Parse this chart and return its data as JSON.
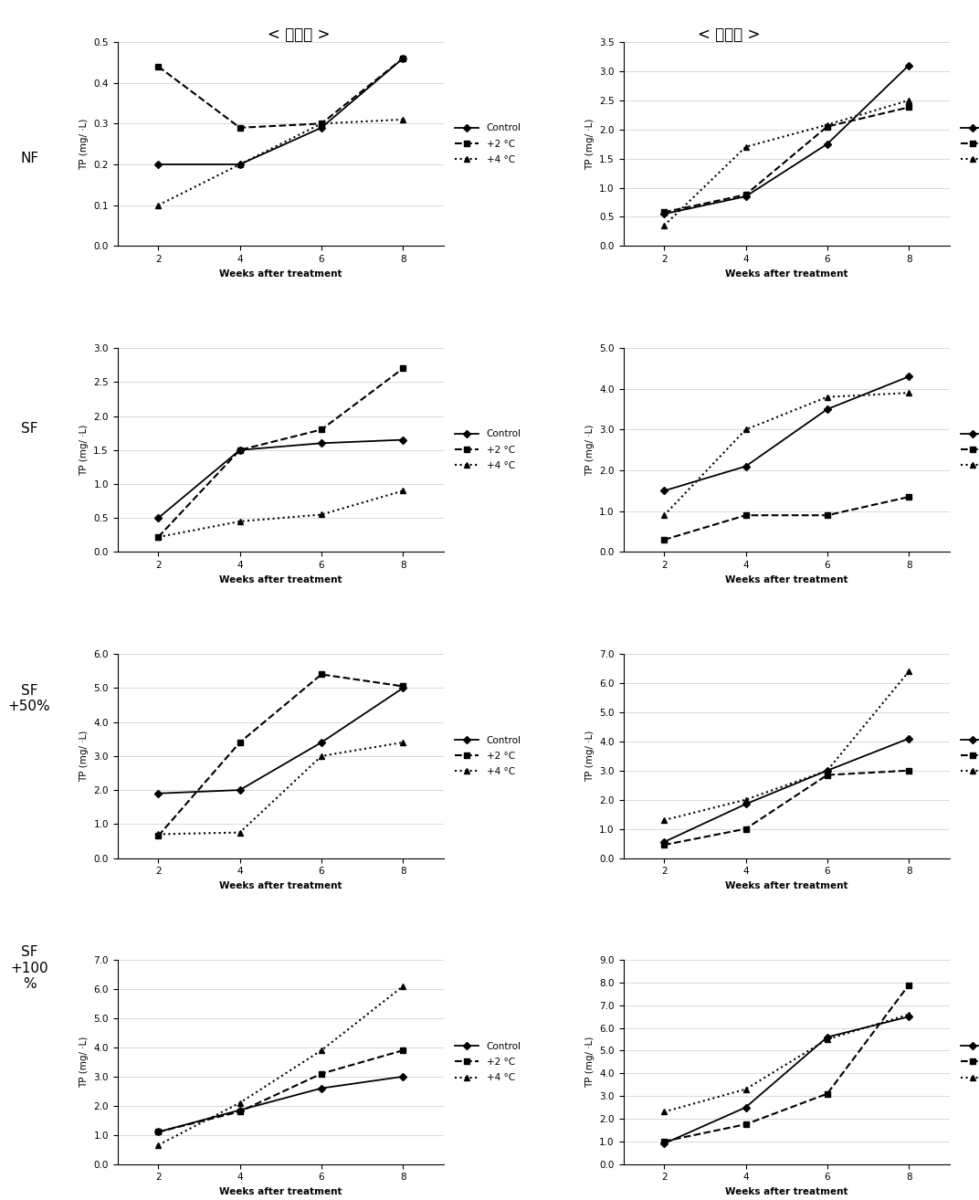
{
  "title_left": "< 사양토 >",
  "title_right": "< 식양토 >",
  "x_values": [
    2,
    4,
    6,
    8
  ],
  "xlabel": "Weeks after treatment",
  "ylabel_left": "TP (mg/ ·L)",
  "ylabel_right": "TP (mg/ ·L)",
  "row_labels": [
    "NF",
    "SF",
    "SF\n+50%",
    "SF\n+100\n%"
  ],
  "legend_labels": [
    "Control",
    "+2 °C",
    "+4 °C"
  ],
  "plots": [
    {
      "row": 0,
      "col": 0,
      "ylim": [
        0.0,
        0.5
      ],
      "yticks": [
        0.0,
        0.1,
        0.2,
        0.3,
        0.4,
        0.5
      ],
      "ylabel": "TP (mg/ ·L)",
      "control": [
        0.2,
        0.2,
        0.29,
        0.46
      ],
      "plus2": [
        0.44,
        0.29,
        0.3,
        0.46
      ],
      "plus4": [
        0.1,
        0.2,
        0.3,
        0.31
      ]
    },
    {
      "row": 0,
      "col": 1,
      "ylim": [
        0.0,
        3.5
      ],
      "yticks": [
        0.0,
        0.5,
        1.0,
        1.5,
        2.0,
        2.5,
        3.0,
        3.5
      ],
      "ylabel": "TP (mg/ ·L)",
      "control": [
        0.55,
        0.85,
        1.75,
        3.1
      ],
      "plus2": [
        0.58,
        0.88,
        2.05,
        2.38
      ],
      "plus4": [
        0.35,
        1.7,
        2.08,
        2.5
      ]
    },
    {
      "row": 1,
      "col": 0,
      "ylim": [
        0.0,
        3.0
      ],
      "yticks": [
        0.0,
        0.5,
        1.0,
        1.5,
        2.0,
        2.5,
        3.0
      ],
      "ylabel": "TP (mg/ ·L)",
      "control": [
        0.5,
        1.5,
        1.6,
        1.65
      ],
      "plus2": [
        0.22,
        1.5,
        1.8,
        2.7
      ],
      "plus4": [
        0.22,
        0.45,
        0.55,
        0.9
      ]
    },
    {
      "row": 1,
      "col": 1,
      "ylim": [
        0.0,
        5.0
      ],
      "yticks": [
        0.0,
        1.0,
        2.0,
        3.0,
        4.0,
        5.0
      ],
      "ylabel": "TP (mg/ ·L)",
      "control": [
        1.5,
        2.1,
        3.5,
        4.3
      ],
      "plus2": [
        0.3,
        0.9,
        0.9,
        1.35
      ],
      "plus4": [
        0.9,
        3.0,
        3.8,
        3.9
      ]
    },
    {
      "row": 2,
      "col": 0,
      "ylim": [
        0.0,
        6.0
      ],
      "yticks": [
        0.0,
        1.0,
        2.0,
        3.0,
        4.0,
        5.0,
        6.0
      ],
      "ylabel": "TP (mg/ ·L)",
      "control": [
        1.9,
        2.0,
        3.4,
        5.0
      ],
      "plus2": [
        0.65,
        3.4,
        5.4,
        5.05
      ],
      "plus4": [
        0.7,
        0.75,
        3.0,
        3.4
      ]
    },
    {
      "row": 2,
      "col": 1,
      "ylim": [
        0.0,
        7.0
      ],
      "yticks": [
        0.0,
        1.0,
        2.0,
        3.0,
        4.0,
        5.0,
        6.0,
        7.0
      ],
      "ylabel": "TP (mg/ ·L)",
      "control": [
        0.55,
        1.85,
        3.0,
        4.1
      ],
      "plus2": [
        0.45,
        1.0,
        2.85,
        3.0
      ],
      "plus4": [
        1.3,
        2.0,
        3.0,
        6.4
      ]
    },
    {
      "row": 3,
      "col": 0,
      "ylim": [
        0.0,
        7.0
      ],
      "yticks": [
        0.0,
        1.0,
        2.0,
        3.0,
        4.0,
        5.0,
        6.0,
        7.0
      ],
      "ylabel": "TP (mg/ ·L)",
      "control": [
        1.1,
        1.85,
        2.6,
        3.0
      ],
      "plus2": [
        1.1,
        1.8,
        3.1,
        3.9
      ],
      "plus4": [
        0.65,
        2.1,
        3.9,
        6.1
      ]
    },
    {
      "row": 3,
      "col": 1,
      "ylim": [
        0.0,
        9.0
      ],
      "yticks": [
        0.0,
        1.0,
        2.0,
        3.0,
        4.0,
        5.0,
        6.0,
        7.0,
        8.0,
        9.0
      ],
      "ylabel": "TP (mg/ ·L)",
      "control": [
        0.9,
        2.5,
        5.6,
        6.5
      ],
      "plus2": [
        1.0,
        1.75,
        3.1,
        7.9
      ],
      "plus4": [
        2.3,
        3.3,
        5.5,
        6.6
      ]
    }
  ]
}
